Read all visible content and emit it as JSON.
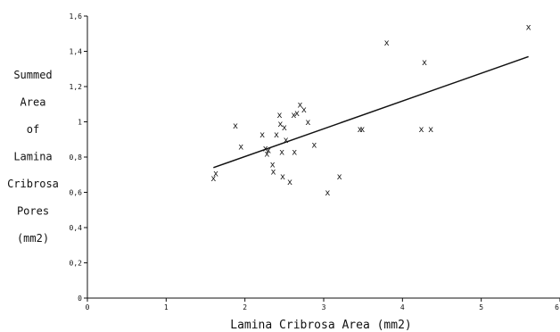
{
  "chart_data": {
    "type": "scatter",
    "title": "",
    "xlabel": "Lamina Cribrosa Area (mm2)",
    "ylabel_lines": [
      "Summed",
      "Area",
      "of",
      "Lamina",
      "Cribrosa",
      "Pores",
      "(mm2)"
    ],
    "xlim": [
      0,
      6
    ],
    "ylim": [
      0,
      1.6
    ],
    "x_ticks": [
      "0",
      "1",
      "2",
      "3",
      "4",
      "5",
      "6"
    ],
    "y_ticks": [
      "0",
      "0,2",
      "0,4",
      "0,6",
      "0,8",
      "1",
      "1,2",
      "1,4",
      "1,6"
    ],
    "marker": "x",
    "grid": false,
    "points": [
      {
        "x": 1.6,
        "y": 0.68
      },
      {
        "x": 1.63,
        "y": 0.71
      },
      {
        "x": 1.88,
        "y": 0.98
      },
      {
        "x": 1.95,
        "y": 0.86
      },
      {
        "x": 2.22,
        "y": 0.93
      },
      {
        "x": 2.26,
        "y": 0.85
      },
      {
        "x": 2.28,
        "y": 0.82
      },
      {
        "x": 2.3,
        "y": 0.84
      },
      {
        "x": 2.35,
        "y": 0.76
      },
      {
        "x": 2.36,
        "y": 0.72
      },
      {
        "x": 2.4,
        "y": 0.93
      },
      {
        "x": 2.44,
        "y": 1.04
      },
      {
        "x": 2.45,
        "y": 0.99
      },
      {
        "x": 2.47,
        "y": 0.83
      },
      {
        "x": 2.48,
        "y": 0.69
      },
      {
        "x": 2.5,
        "y": 0.97
      },
      {
        "x": 2.52,
        "y": 0.9
      },
      {
        "x": 2.57,
        "y": 0.66
      },
      {
        "x": 2.62,
        "y": 1.04
      },
      {
        "x": 2.63,
        "y": 0.83
      },
      {
        "x": 2.66,
        "y": 1.05
      },
      {
        "x": 2.7,
        "y": 1.1
      },
      {
        "x": 2.75,
        "y": 1.07
      },
      {
        "x": 2.8,
        "y": 1.0
      },
      {
        "x": 2.88,
        "y": 0.87
      },
      {
        "x": 3.05,
        "y": 0.6
      },
      {
        "x": 3.2,
        "y": 0.69
      },
      {
        "x": 3.46,
        "y": 0.96
      },
      {
        "x": 3.49,
        "y": 0.96
      },
      {
        "x": 3.8,
        "y": 1.45
      },
      {
        "x": 4.24,
        "y": 0.96
      },
      {
        "x": 4.28,
        "y": 1.34
      },
      {
        "x": 4.36,
        "y": 0.96
      },
      {
        "x": 5.6,
        "y": 1.54
      }
    ],
    "fit_line": [
      {
        "x": 1.6,
        "y": 0.74
      },
      {
        "x": 5.6,
        "y": 1.37
      }
    ]
  }
}
